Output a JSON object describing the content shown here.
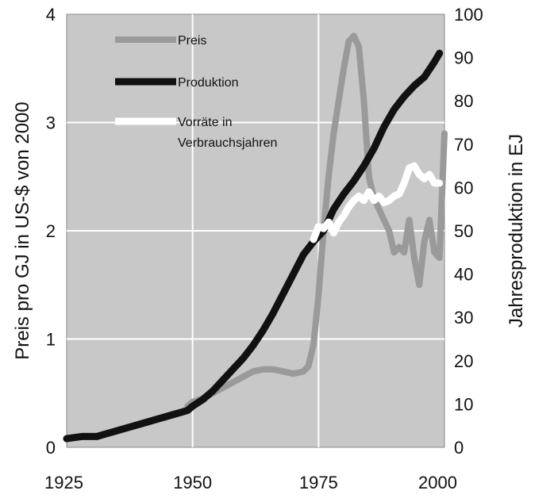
{
  "chart_data": {
    "type": "line",
    "title": "",
    "xlabel": "",
    "ylabel_left": "Preis pro GJ in US-$ von 2000",
    "ylabel_right": "Jahresproduktion in EJ",
    "xlim": [
      1925,
      2000
    ],
    "ylim_left": [
      0,
      4
    ],
    "ylim_right": [
      0,
      100
    ],
    "x_ticks": [
      1925,
      1950,
      1975,
      2000
    ],
    "y_ticks_left": [
      0,
      1,
      2,
      3,
      4
    ],
    "y_ticks_right": [
      0,
      10,
      20,
      30,
      40,
      50,
      60,
      70,
      80,
      90,
      100
    ],
    "grid": true,
    "legend_position": "top-left",
    "series": [
      {
        "name": "Preis",
        "axis": "left",
        "color": "#9a9a9a",
        "x": [
          1949,
          1950,
          1952,
          1954,
          1956,
          1958,
          1960,
          1962,
          1964,
          1966,
          1968,
          1970,
          1972,
          1973,
          1974,
          1975,
          1976,
          1977,
          1978,
          1979,
          1980,
          1981,
          1982,
          1983,
          1984,
          1985,
          1986,
          1987,
          1988,
          1989,
          1990,
          1991,
          1992,
          1993,
          1994,
          1995,
          1996,
          1997,
          1998,
          1999,
          2000
        ],
        "values": [
          0.38,
          0.42,
          0.45,
          0.5,
          0.55,
          0.6,
          0.65,
          0.7,
          0.72,
          0.72,
          0.7,
          0.68,
          0.7,
          0.75,
          0.95,
          1.4,
          2.0,
          2.5,
          2.9,
          3.2,
          3.5,
          3.75,
          3.8,
          3.7,
          3.2,
          2.5,
          2.3,
          2.2,
          2.1,
          2.0,
          1.8,
          1.85,
          1.8,
          2.1,
          1.75,
          1.5,
          1.9,
          2.1,
          1.8,
          1.75,
          2.9
        ]
      },
      {
        "name": "Produktion",
        "axis": "right",
        "color": "#111111",
        "x": [
          1925,
          1928,
          1931,
          1934,
          1937,
          1940,
          1943,
          1946,
          1949,
          1950,
          1952,
          1954,
          1956,
          1958,
          1960,
          1962,
          1964,
          1966,
          1968,
          1970,
          1972,
          1974,
          1976,
          1978,
          1980,
          1982,
          1984,
          1986,
          1988,
          1990,
          1992,
          1994,
          1996,
          1998,
          1999
        ],
        "values": [
          2,
          2.5,
          2.5,
          3.5,
          4.5,
          5.5,
          6.5,
          7.5,
          8.5,
          9.5,
          11,
          13,
          15.5,
          18,
          20.5,
          23.5,
          27,
          31,
          35.5,
          40,
          44.5,
          47.5,
          50,
          55,
          58.5,
          61.5,
          65,
          69,
          74,
          78,
          81,
          83.5,
          85.5,
          89,
          91
        ]
      },
      {
        "name": "Vorräte in Verbrauchsjahren",
        "axis": "right",
        "color": "#ffffff",
        "x": [
          1974,
          1975,
          1976,
          1977,
          1978,
          1979,
          1980,
          1981,
          1982,
          1983,
          1984,
          1985,
          1986,
          1987,
          1988,
          1989,
          1990,
          1991,
          1992,
          1993,
          1994,
          1995,
          1996,
          1997,
          1998,
          1999
        ],
        "values": [
          48,
          51,
          50.5,
          52,
          49.5,
          52,
          53.5,
          55.5,
          57,
          58,
          57,
          59,
          57,
          58,
          56.5,
          57,
          58,
          58.5,
          61,
          64.5,
          65,
          63,
          62,
          63,
          61,
          61
        ]
      }
    ]
  }
}
